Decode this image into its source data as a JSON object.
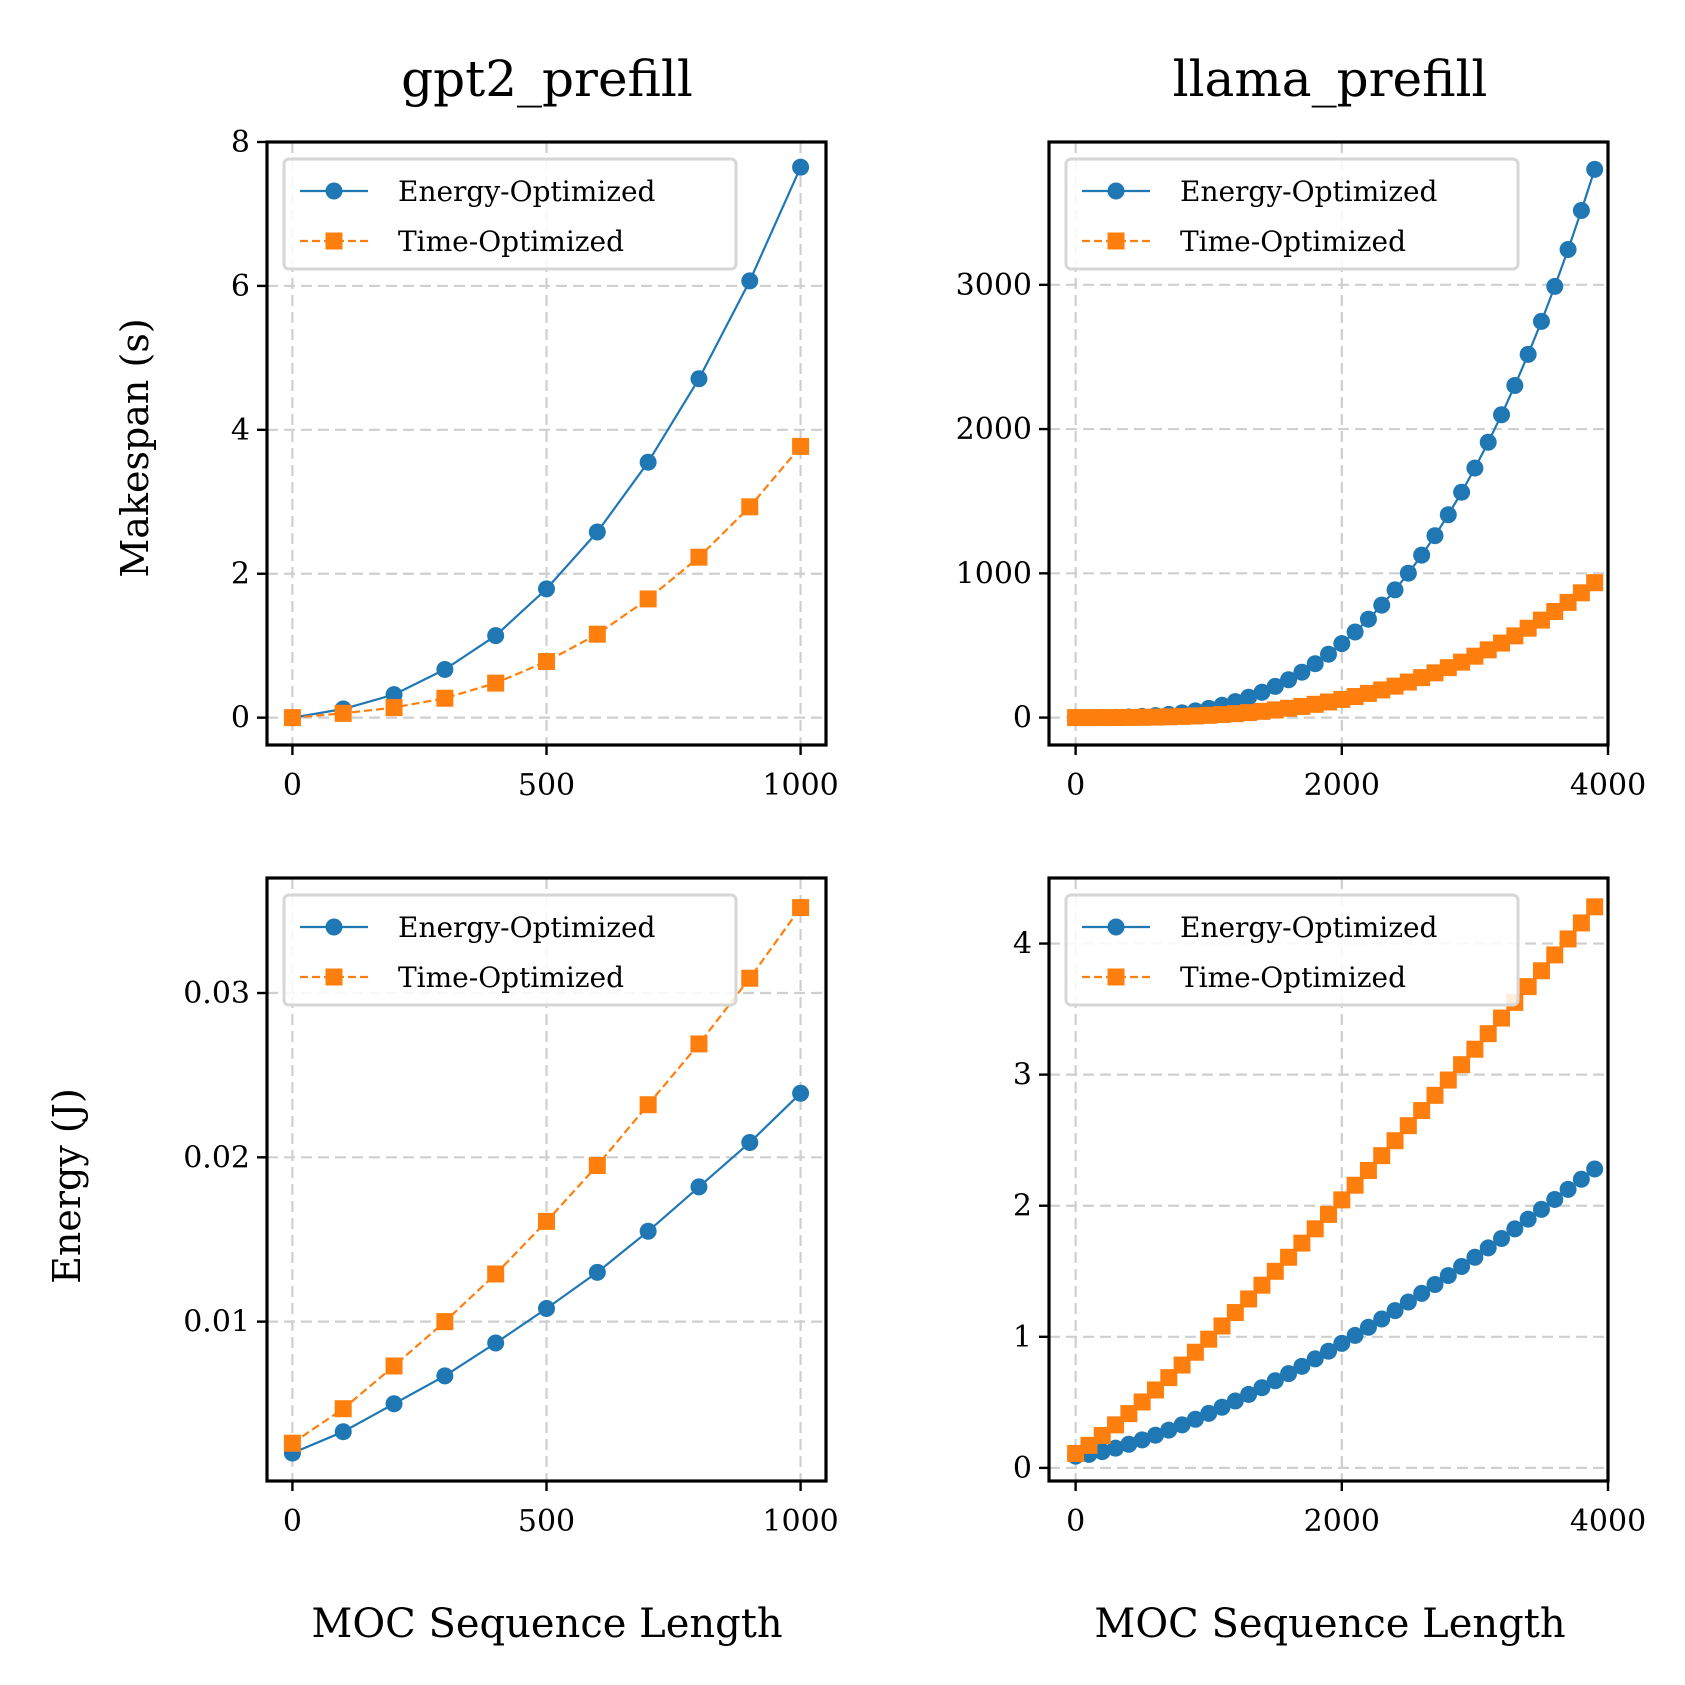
{
  "colors": {
    "energy": "#1f77b4",
    "time": "#ff7f0e"
  },
  "columns": [
    "gpt2_prefill",
    "llama_prefill"
  ],
  "row_labels": [
    "Makespan (s)",
    "Energy (J)"
  ],
  "x_label": "MOC Sequence Length",
  "legend": {
    "energy": "Energy-Optimized",
    "time": "Time-Optimized"
  },
  "chart_data": [
    {
      "type": "line",
      "title": "gpt2_prefill",
      "xlabel": "",
      "ylabel": "Makespan (s)",
      "legend": [
        "Energy-Optimized",
        "Time-Optimized"
      ],
      "legend_loc": "upper-left",
      "grid": true,
      "xlim": [
        -50,
        1050
      ],
      "ylim": [
        -0.38,
        8.0
      ],
      "xticks": [
        0,
        500,
        1000
      ],
      "xtick_labels": [
        "0",
        "500",
        "1000"
      ],
      "yticks": [
        0,
        2,
        4,
        6,
        8
      ],
      "ytick_labels": [
        "0",
        "2",
        "4",
        "6",
        "8"
      ],
      "series": [
        {
          "name": "Energy-Optimized",
          "marker": "circle",
          "style": "solid",
          "x": [
            0,
            100,
            200,
            300,
            400,
            500,
            600,
            700,
            800,
            900,
            1000
          ],
          "y": [
            0.0,
            0.12,
            0.32,
            0.67,
            1.14,
            1.79,
            2.58,
            3.55,
            4.71,
            6.07,
            7.65
          ]
        },
        {
          "name": "Time-Optimized",
          "marker": "square",
          "style": "dashed",
          "x": [
            0,
            100,
            200,
            300,
            400,
            500,
            600,
            700,
            800,
            900,
            1000
          ],
          "y": [
            0.0,
            0.06,
            0.14,
            0.27,
            0.48,
            0.78,
            1.16,
            1.65,
            2.23,
            2.93,
            3.77
          ]
        }
      ]
    },
    {
      "type": "line",
      "title": "llama_prefill",
      "xlabel": "",
      "ylabel": "",
      "legend": [
        "Energy-Optimized",
        "Time-Optimized"
      ],
      "legend_loc": "upper-left",
      "grid": true,
      "xlim": [
        -200,
        4000
      ],
      "ylim": [
        -190,
        3990
      ],
      "xticks": [
        0,
        2000,
        4000
      ],
      "xtick_labels": [
        "0",
        "2000",
        "4000"
      ],
      "yticks": [
        0,
        1000,
        2000,
        3000
      ],
      "ytick_labels": [
        "0",
        "1000",
        "2000",
        "3000"
      ],
      "series": [
        {
          "name": "Energy-Optimized",
          "marker": "circle",
          "style": "solid",
          "x_start": 0,
          "x_step": 100,
          "count": 40,
          "exponent": 3,
          "y_at_x_end": 3800,
          "x_end": 3900
        },
        {
          "name": "Time-Optimized",
          "marker": "square",
          "style": "dashed",
          "x_start": 0,
          "x_step": 100,
          "count": 40,
          "exponent": 3,
          "y_at_x_end": 935,
          "x_end": 3900
        }
      ]
    },
    {
      "type": "line",
      "title": "",
      "xlabel": "MOC Sequence Length",
      "ylabel": "Energy (J)",
      "legend": [
        "Energy-Optimized",
        "Time-Optimized"
      ],
      "legend_loc": "upper-left",
      "grid": true,
      "xlim": [
        -50,
        1050
      ],
      "ylim": [
        0.0003,
        0.037
      ],
      "xticks": [
        0,
        500,
        1000
      ],
      "xtick_labels": [
        "0",
        "500",
        "1000"
      ],
      "yticks": [
        0.01,
        0.02,
        0.03
      ],
      "ytick_labels": [
        "0.01",
        "0.02",
        "0.03"
      ],
      "series": [
        {
          "name": "Energy-Optimized",
          "marker": "circle",
          "style": "solid",
          "x": [
            0,
            100,
            200,
            300,
            400,
            500,
            600,
            700,
            800,
            900,
            1000
          ],
          "y": [
            0.002,
            0.0033,
            0.005,
            0.0067,
            0.0087,
            0.0108,
            0.013,
            0.0155,
            0.0182,
            0.0209,
            0.0239
          ]
        },
        {
          "name": "Time-Optimized",
          "marker": "square",
          "style": "dashed",
          "x": [
            0,
            100,
            200,
            300,
            400,
            500,
            600,
            700,
            800,
            900,
            1000
          ],
          "y": [
            0.0026,
            0.0047,
            0.0073,
            0.01,
            0.0129,
            0.0161,
            0.0195,
            0.0232,
            0.0269,
            0.0309,
            0.0352
          ]
        }
      ]
    },
    {
      "type": "line",
      "title": "",
      "xlabel": "MOC Sequence Length",
      "ylabel": "",
      "legend": [
        "Energy-Optimized",
        "Time-Optimized"
      ],
      "legend_loc": "upper-left",
      "grid": true,
      "xlim": [
        -200,
        4000
      ],
      "ylim": [
        -0.1,
        4.5
      ],
      "xticks": [
        0,
        2000,
        4000
      ],
      "xtick_labels": [
        "0",
        "2000",
        "4000"
      ],
      "yticks": [
        0,
        1,
        2,
        3,
        4
      ],
      "ytick_labels": [
        "0",
        "1",
        "2",
        "3",
        "4"
      ],
      "series": [
        {
          "name": "Energy-Optimized",
          "marker": "circle",
          "style": "solid",
          "x_start": 0,
          "x_step": 100,
          "count": 40,
          "exponent": 1.4,
          "y_at_x_start": 0.09,
          "y_at_x_end": 2.28,
          "x_end": 3900
        },
        {
          "name": "Time-Optimized",
          "marker": "square",
          "style": "dashed",
          "x_start": 0,
          "x_step": 100,
          "count": 40,
          "exponent": 1.15,
          "y_at_x_start": 0.11,
          "y_at_x_end": 4.28,
          "x_end": 3900
        }
      ]
    }
  ]
}
